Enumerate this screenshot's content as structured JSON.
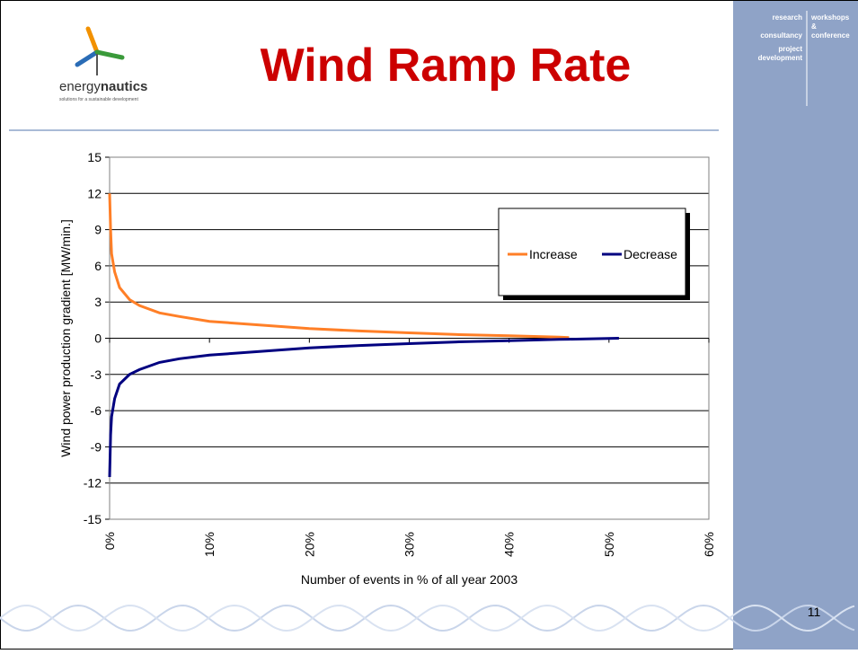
{
  "header": {
    "title": "Wind Ramp Rate",
    "logo_light": "energy",
    "logo_bold": "nautics",
    "tagline": "solutions for a sustainable development"
  },
  "sidebar": {
    "left": [
      "research",
      "consultancy",
      "project",
      "development"
    ],
    "right": [
      "workshops",
      "&",
      "conference"
    ]
  },
  "page_number": "11",
  "chart_data": {
    "type": "line",
    "x": [
      0,
      0.1,
      0.2,
      0.5,
      1,
      2,
      3,
      5,
      7,
      10,
      15,
      20,
      25,
      30,
      35,
      40,
      45,
      46,
      51
    ],
    "series": [
      {
        "name": "Increase",
        "color": "#ff7f27",
        "values": [
          12,
          9,
          7,
          5.5,
          4.2,
          3.2,
          2.7,
          2.1,
          1.8,
          1.4,
          1.1,
          0.8,
          0.6,
          0.45,
          0.3,
          0.2,
          0.1,
          0.05,
          null
        ]
      },
      {
        "name": "Decrease",
        "color": "#000080",
        "values": [
          -11.5,
          -8,
          -6.5,
          -5,
          -3.8,
          -3,
          -2.6,
          -2,
          -1.7,
          -1.4,
          -1.1,
          -0.8,
          -0.6,
          -0.45,
          -0.3,
          -0.2,
          -0.1,
          -0.08,
          0
        ]
      }
    ],
    "xlim": [
      0,
      60
    ],
    "xticks": [
      {
        "value": 0,
        "label": "0%"
      },
      {
        "value": 10,
        "label": "10%"
      },
      {
        "value": 20,
        "label": "20%"
      },
      {
        "value": 30,
        "label": "30%"
      },
      {
        "value": 40,
        "label": "40%"
      },
      {
        "value": 50,
        "label": "50%"
      },
      {
        "value": 60,
        "label": "60%"
      }
    ],
    "ylim": [
      -15,
      15
    ],
    "yticks": [
      -15,
      -12,
      -9,
      -6,
      -3,
      0,
      3,
      6,
      9,
      12,
      15
    ],
    "grid": true,
    "x_label": "Number of events in % of all year 2003",
    "y_label": "Wind power production gradient [MW/min.]"
  }
}
